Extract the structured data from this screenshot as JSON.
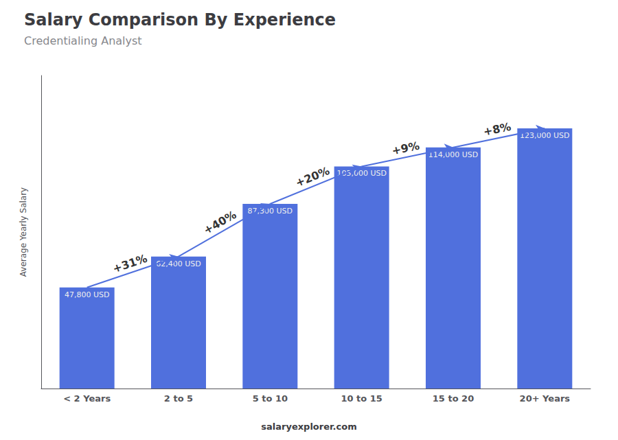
{
  "chart_data": {
    "type": "bar",
    "title": "Salary Comparison By Experience",
    "subtitle": "Credentialing Analyst",
    "ylabel": "Average Yearly Salary",
    "footer": "salaryexplorer.com",
    "categories": [
      "< 2 Years",
      "2 to 5",
      "5 to 10",
      "10 to 15",
      "15 to 20",
      "20+ Years"
    ],
    "values": [
      47800,
      62400,
      87300,
      105000,
      114000,
      123000
    ],
    "value_labels": [
      "47,800 USD",
      "62,400 USD",
      "87,300 USD",
      "105,000 USD",
      "114,000 USD",
      "123,000 USD"
    ],
    "data_labels": true,
    "annotations": [
      {
        "text": "+31%",
        "from": "< 2 Years",
        "to": "2 to 5"
      },
      {
        "text": "+40%",
        "from": "2 to 5",
        "to": "5 to 10"
      },
      {
        "text": "+20%",
        "from": "5 to 10",
        "to": "10 to 15"
      },
      {
        "text": "+9%",
        "from": "10 to 15",
        "to": "15 to 20"
      },
      {
        "text": "+8%",
        "from": "15 to 20",
        "to": "20+ Years"
      }
    ],
    "ylim": [
      0,
      148000
    ],
    "grid": false,
    "tick_labels": "x"
  }
}
